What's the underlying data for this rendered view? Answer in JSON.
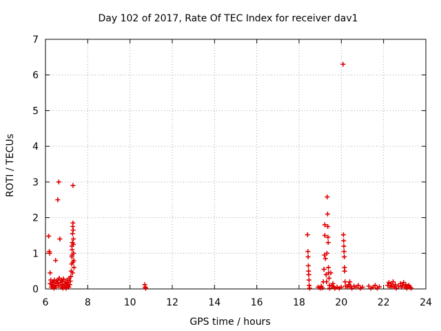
{
  "chart_data": {
    "type": "scatter",
    "title": "Day 102 of 2017, Rate Of TEC Index for receiver dav1",
    "xlabel": "GPS time / hours",
    "ylabel": "ROTI / TECUs",
    "xlim": [
      6,
      24
    ],
    "ylim": [
      0,
      7
    ],
    "xticks": [
      "6",
      "8",
      "10",
      "12",
      "14",
      "16",
      "18",
      "20",
      "22",
      "24"
    ],
    "yticks": [
      "0",
      "1",
      "2",
      "3",
      "4",
      "5",
      "6",
      "7"
    ],
    "grid": true,
    "marker": "plus",
    "color": "#e00000",
    "series": [
      {
        "points": [
          [
            6.15,
            1.48
          ],
          [
            6.18,
            1.05
          ],
          [
            6.2,
            1.0
          ],
          [
            6.22,
            0.45
          ],
          [
            6.25,
            0.25
          ],
          [
            6.22,
            0.15
          ],
          [
            6.28,
            0.05
          ],
          [
            6.3,
            0.12
          ],
          [
            6.32,
            0.2
          ],
          [
            6.35,
            0.08
          ],
          [
            6.38,
            0.18
          ],
          [
            6.4,
            0.02
          ],
          [
            6.42,
            0.25
          ],
          [
            6.45,
            0.1
          ],
          [
            6.48,
            0.8
          ],
          [
            6.5,
            0.05
          ],
          [
            6.52,
            0.22
          ],
          [
            6.55,
            0.15
          ],
          [
            6.58,
            2.5
          ],
          [
            6.6,
            0.25
          ],
          [
            6.62,
            0.1
          ],
          [
            6.63,
            3.0
          ],
          [
            6.65,
            0.3
          ],
          [
            6.68,
            1.4
          ],
          [
            6.7,
            0.18
          ],
          [
            6.72,
            0.05
          ],
          [
            6.75,
            0.25
          ],
          [
            6.78,
            0.12
          ],
          [
            6.8,
            0.2
          ],
          [
            6.82,
            0.02
          ],
          [
            6.85,
            0.28
          ],
          [
            6.88,
            0.1
          ],
          [
            6.9,
            0.05
          ],
          [
            6.92,
            0.2
          ],
          [
            6.95,
            0.15
          ],
          [
            6.98,
            0.02
          ],
          [
            7.0,
            0.1
          ],
          [
            7.02,
            0.25
          ],
          [
            7.05,
            0.08
          ],
          [
            7.08,
            0.18
          ],
          [
            7.1,
            0.05
          ],
          [
            7.12,
            0.3
          ],
          [
            7.15,
            0.12
          ],
          [
            7.18,
            0.22
          ],
          [
            7.2,
            0.35
          ],
          [
            7.22,
            0.5
          ],
          [
            7.24,
            0.7
          ],
          [
            7.25,
            0.9
          ],
          [
            7.26,
            1.1
          ],
          [
            7.27,
            1.3
          ],
          [
            7.28,
            1.55
          ],
          [
            7.29,
            1.75
          ],
          [
            7.3,
            1.85
          ],
          [
            7.3,
            2.9
          ],
          [
            7.31,
            1.65
          ],
          [
            7.32,
            1.25
          ],
          [
            7.33,
            1.0
          ],
          [
            7.34,
            0.8
          ],
          [
            7.35,
            0.6
          ],
          [
            7.28,
            0.45
          ],
          [
            7.3,
            0.75
          ],
          [
            7.26,
            0.95
          ],
          [
            7.32,
            1.4
          ],
          [
            7.25,
            1.2
          ],
          [
            10.7,
            0.12
          ],
          [
            10.72,
            0.05
          ],
          [
            10.74,
            0.02
          ],
          [
            18.4,
            1.52
          ],
          [
            18.42,
            1.05
          ],
          [
            18.43,
            0.9
          ],
          [
            18.44,
            0.65
          ],
          [
            18.45,
            0.5
          ],
          [
            18.46,
            0.4
          ],
          [
            18.47,
            0.25
          ],
          [
            18.48,
            0.1
          ],
          [
            18.5,
            0.02
          ],
          [
            18.9,
            0.05
          ],
          [
            19.0,
            0.02
          ],
          [
            19.05,
            0.08
          ],
          [
            19.1,
            0.03
          ],
          [
            19.15,
            0.2
          ],
          [
            19.18,
            0.55
          ],
          [
            19.2,
            0.95
          ],
          [
            19.22,
            1.8
          ],
          [
            19.22,
            1.5
          ],
          [
            19.25,
            0.85
          ],
          [
            19.28,
            0.4
          ],
          [
            19.3,
            0.2
          ],
          [
            19.32,
            1.0
          ],
          [
            19.33,
            2.58
          ],
          [
            19.35,
            2.1
          ],
          [
            19.36,
            1.75
          ],
          [
            19.37,
            1.45
          ],
          [
            19.38,
            1.3
          ],
          [
            19.39,
            0.6
          ],
          [
            19.4,
            0.45
          ],
          [
            19.42,
            0.3
          ],
          [
            19.44,
            0.1
          ],
          [
            19.45,
            0.02
          ],
          [
            19.5,
            0.45
          ],
          [
            19.55,
            0.08
          ],
          [
            19.6,
            0.15
          ],
          [
            19.65,
            0.05
          ],
          [
            19.7,
            0.02
          ],
          [
            19.8,
            0.05
          ],
          [
            19.9,
            0.02
          ],
          [
            20.0,
            0.05
          ],
          [
            20.08,
            6.3
          ],
          [
            20.1,
            1.52
          ],
          [
            20.11,
            1.35
          ],
          [
            20.12,
            1.2
          ],
          [
            20.13,
            1.05
          ],
          [
            20.14,
            0.9
          ],
          [
            20.15,
            0.6
          ],
          [
            20.16,
            0.5
          ],
          [
            20.18,
            0.2
          ],
          [
            20.2,
            0.08
          ],
          [
            20.3,
            0.05
          ],
          [
            20.35,
            0.12
          ],
          [
            20.4,
            0.2
          ],
          [
            20.45,
            0.08
          ],
          [
            20.5,
            0.02
          ],
          [
            20.6,
            0.08
          ],
          [
            20.7,
            0.05
          ],
          [
            20.8,
            0.1
          ],
          [
            20.9,
            0.02
          ],
          [
            21.0,
            0.05
          ],
          [
            21.3,
            0.08
          ],
          [
            21.4,
            0.02
          ],
          [
            21.5,
            0.05
          ],
          [
            21.6,
            0.1
          ],
          [
            21.7,
            0.02
          ],
          [
            21.8,
            0.06
          ],
          [
            22.2,
            0.1
          ],
          [
            22.25,
            0.18
          ],
          [
            22.3,
            0.05
          ],
          [
            22.35,
            0.15
          ],
          [
            22.4,
            0.08
          ],
          [
            22.45,
            0.2
          ],
          [
            22.5,
            0.05
          ],
          [
            22.55,
            0.12
          ],
          [
            22.6,
            0.02
          ],
          [
            22.7,
            0.08
          ],
          [
            22.8,
            0.15
          ],
          [
            22.85,
            0.05
          ],
          [
            22.9,
            0.1
          ],
          [
            22.95,
            0.18
          ],
          [
            23.0,
            0.05
          ],
          [
            23.05,
            0.12
          ],
          [
            23.1,
            0.02
          ],
          [
            23.15,
            0.08
          ],
          [
            23.2,
            0.1
          ],
          [
            23.25,
            0.05
          ],
          [
            23.3,
            0.02
          ]
        ]
      }
    ]
  }
}
